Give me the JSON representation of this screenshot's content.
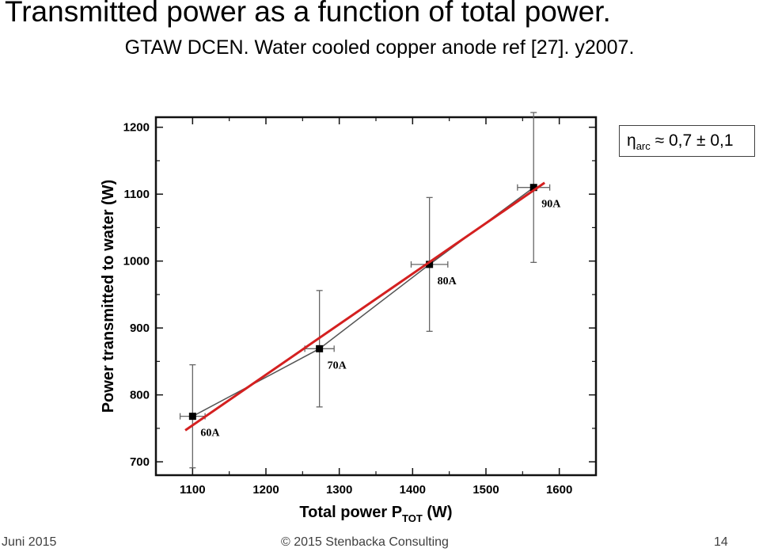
{
  "slide": {
    "title": "Transmitted power as a function of total power.",
    "subtitle": "GTAW DCEN. Water cooled copper anode ref [27]. y2007.",
    "eta_symbol": "η",
    "eta_subscript": "arc",
    "eta_value": " ≈ 0,7 ± 0,1"
  },
  "footer": {
    "date": "Juni 2015",
    "center": "© 2015 Stenbacka Consulting",
    "page": "14"
  },
  "chart_data": {
    "type": "scatter",
    "xlabel": "Total power P",
    "xlabel_sub": "TOT",
    "xlabel_unit": " (W)",
    "ylabel": "Power transmitted to water (W)",
    "xlim": [
      1050,
      1650
    ],
    "ylim": [
      680,
      1215
    ],
    "xticks": [
      1100,
      1200,
      1300,
      1400,
      1500,
      1600
    ],
    "yticks": [
      700,
      800,
      900,
      1000,
      1100,
      1200
    ],
    "grid": false,
    "series": [
      {
        "points": [
          {
            "x": 1100,
            "y": 768,
            "xerr": 17,
            "yerr": 77,
            "label": "60A"
          },
          {
            "x": 1273,
            "y": 869,
            "xerr": 20,
            "yerr": 87,
            "label": "70A"
          },
          {
            "x": 1423,
            "y": 995,
            "xerr": 25,
            "yerr": 100,
            "label": "80A"
          },
          {
            "x": 1565,
            "y": 1110,
            "xerr": 22,
            "yerr": 112,
            "label": "90A"
          }
        ],
        "color": "#000000"
      }
    ],
    "fit_line": {
      "x": [
        1090,
        1580
      ],
      "y": [
        747,
        1117
      ],
      "color": "#d42020"
    }
  }
}
